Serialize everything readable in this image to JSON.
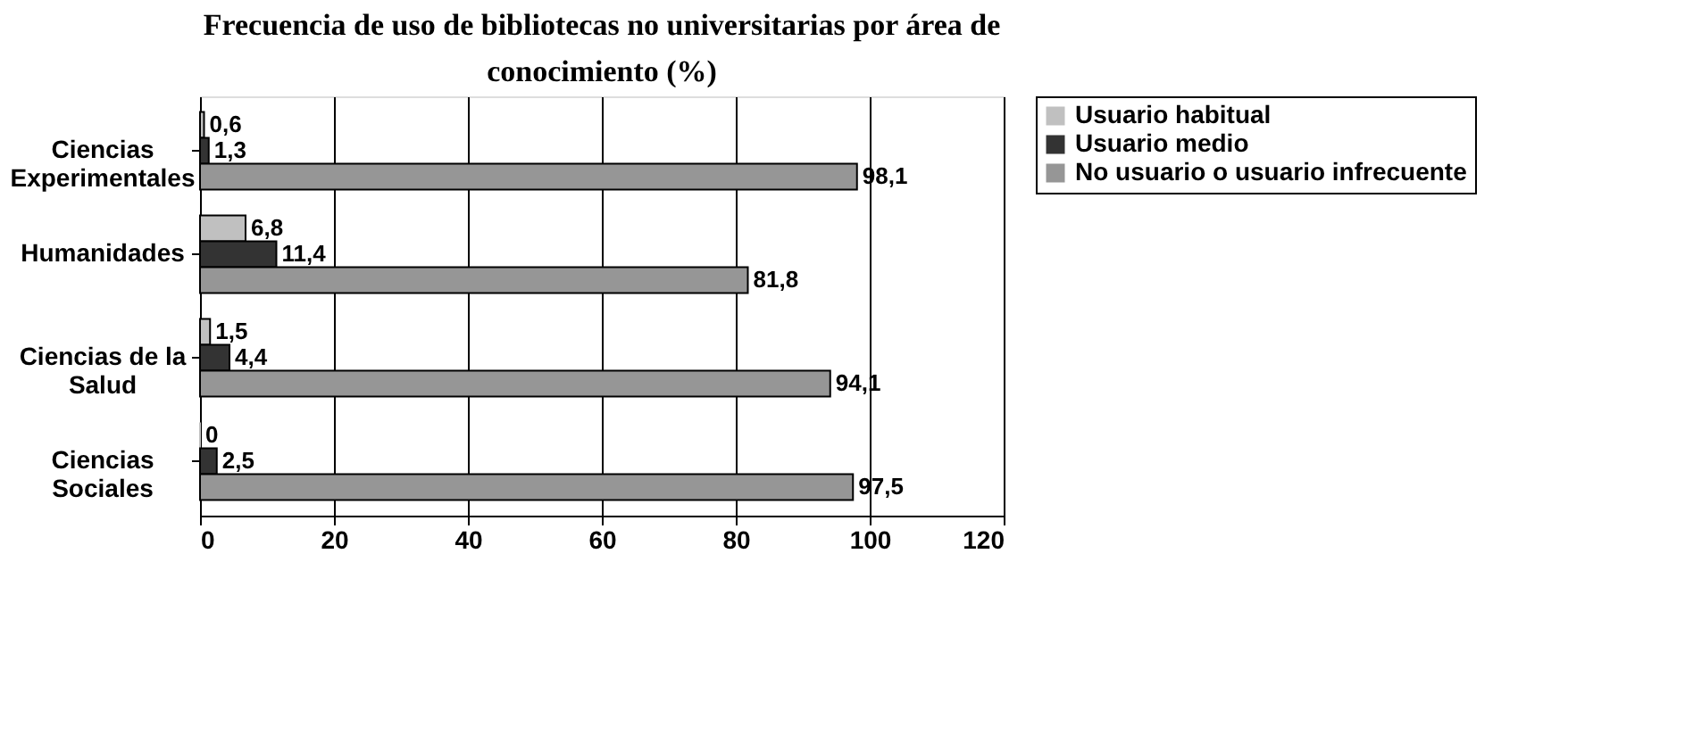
{
  "chart_data": {
    "type": "bar",
    "orientation": "horizontal",
    "title": "Frecuencia de uso de bibliotecas no universitarias por área de conocimiento (%)",
    "categories": [
      "Ciencias\nExperimentales",
      "Humanidades",
      "Ciencias de la\nSalud",
      "Ciencias\nSociales"
    ],
    "series": [
      {
        "name": "Usuario habitual",
        "color": "#c0c0c0",
        "values": [
          0.6,
          6.8,
          1.5,
          0
        ],
        "value_labels": [
          "0,6",
          "6,8",
          "1,5",
          "0"
        ]
      },
      {
        "name": "Usuario medio",
        "color": "#333333",
        "values": [
          1.3,
          11.4,
          4.4,
          2.5
        ],
        "value_labels": [
          "1,3",
          "11,4",
          "4,4",
          "2,5"
        ]
      },
      {
        "name": "No usuario o usuario infrecuente",
        "color": "#969696",
        "values": [
          98.1,
          81.8,
          94.1,
          97.5
        ],
        "value_labels": [
          "98,1",
          "81,8",
          "94,1",
          "97,5"
        ]
      }
    ],
    "xlim": [
      0,
      120
    ],
    "xticks": [
      0,
      20,
      40,
      60,
      80,
      100,
      120
    ],
    "grid": "x",
    "legend": "right"
  }
}
